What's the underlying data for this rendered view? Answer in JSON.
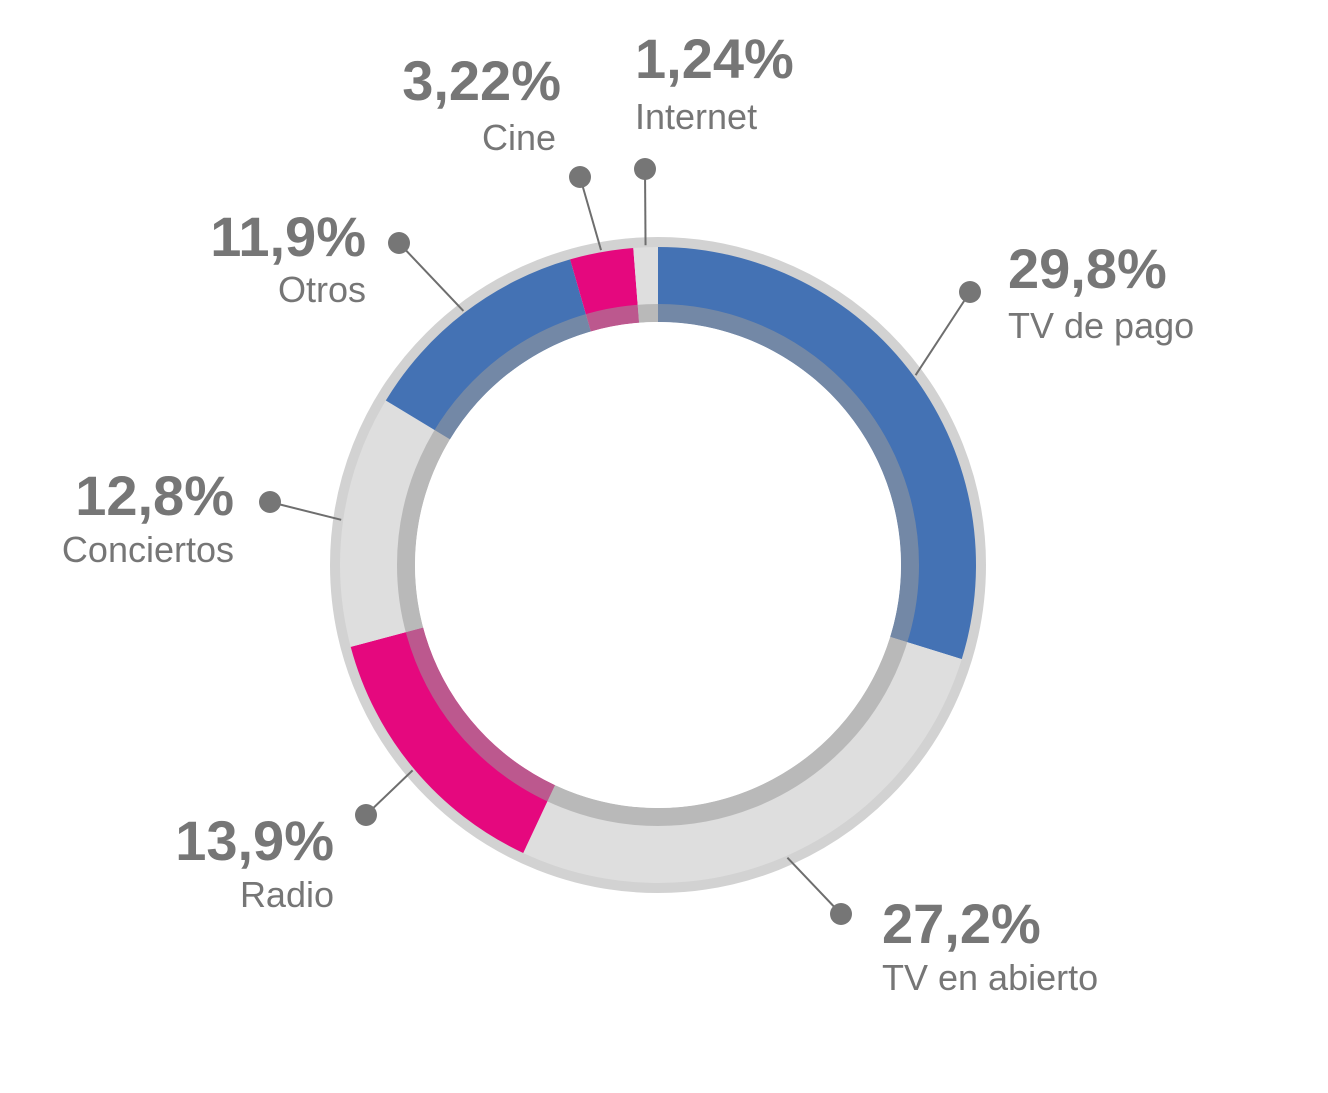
{
  "chart_data": {
    "type": "pie",
    "title": "",
    "slices": [
      {
        "label": "TV de pago",
        "value": 29.8,
        "value_text": "29,8%",
        "color": "#4472b4"
      },
      {
        "label": "TV en abierto",
        "value": 27.2,
        "value_text": "27,2%",
        "color": "#dedede"
      },
      {
        "label": "Radio",
        "value": 13.9,
        "value_text": "13,9%",
        "color": "#e5087e"
      },
      {
        "label": "Conciertos",
        "value": 12.8,
        "value_text": "12,8%",
        "color": "#dedede"
      },
      {
        "label": "Otros",
        "value": 11.9,
        "value_text": "11,9%",
        "color": "#4472b4"
      },
      {
        "label": "Cine",
        "value": 3.22,
        "value_text": "3,22%",
        "color": "#e5087e"
      },
      {
        "label": "Internet",
        "value": 1.24,
        "value_text": "1,24%",
        "color": "#dedede"
      }
    ],
    "legend": "none"
  }
}
